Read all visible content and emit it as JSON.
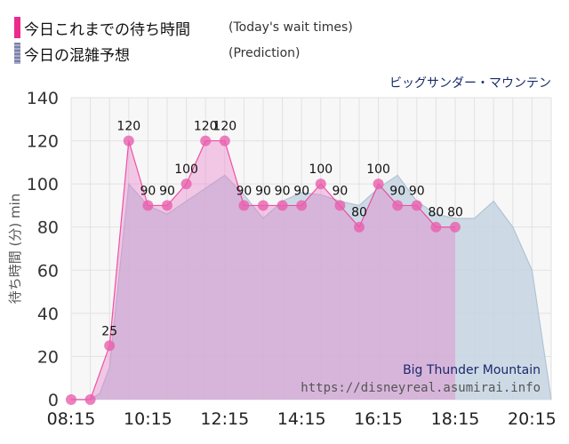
{
  "legend": {
    "actual": {
      "label": "今日これまでの待ち時間",
      "sub": "(Today's wait times)",
      "color": "#ec2a8e"
    },
    "prediction": {
      "label": "今日の混雑予想",
      "sub": "(Prediction)",
      "color": "#7b7fa8"
    }
  },
  "attraction_jp": "ビッグサンダー・マウンテン",
  "attraction_en": "Big Thunder Mountain",
  "source": "https://disneyreal.asumirai.info",
  "colors": {
    "actual_line": "#ec3a95",
    "actual_fill": "#f3b3dc",
    "actual_dot": "#ea5fae",
    "prediction_line": "#b3c3d3",
    "prediction_fill": "#c6d5e3",
    "overlap_fill": "#d8b8dc",
    "grid": "#e2e2e2",
    "plot_bg": "#f7f7f7",
    "title_color": "#1a2a6a"
  },
  "chart_data": {
    "type": "area",
    "ylabel": "待ち時間 (分) min",
    "ylim": [
      0,
      140
    ],
    "yticks": [
      0,
      20,
      40,
      60,
      80,
      100,
      120,
      140
    ],
    "xlim": [
      "08:15",
      "20:45"
    ],
    "xticks": [
      "08:15",
      "10:15",
      "12:15",
      "14:15",
      "16:15",
      "18:15",
      "20:15"
    ],
    "grid": true,
    "legend_position": "top-left",
    "series": [
      {
        "name": "今日これまでの待ち時間",
        "x": [
          "08:15",
          "08:45",
          "09:15",
          "09:45",
          "10:15",
          "10:45",
          "11:15",
          "11:45",
          "12:15",
          "12:45",
          "13:15",
          "13:45",
          "14:15",
          "14:45",
          "15:15",
          "15:45",
          "16:15",
          "16:45",
          "17:15",
          "17:45",
          "18:15"
        ],
        "values": [
          0,
          0,
          25,
          120,
          90,
          90,
          100,
          120,
          120,
          90,
          90,
          90,
          90,
          100,
          90,
          80,
          100,
          90,
          90,
          80,
          80
        ]
      },
      {
        "name": "今日の混雑予想",
        "x": [
          "08:15",
          "08:45",
          "09:00",
          "09:15",
          "09:45",
          "10:15",
          "10:45",
          "11:15",
          "11:45",
          "12:15",
          "12:45",
          "13:15",
          "13:45",
          "14:15",
          "14:45",
          "15:15",
          "15:45",
          "16:15",
          "16:45",
          "17:15",
          "17:45",
          "18:15",
          "18:45",
          "19:15",
          "19:45",
          "20:15",
          "20:45"
        ],
        "values": [
          0,
          0,
          3,
          15,
          100,
          90,
          86,
          92,
          98,
          104,
          95,
          84,
          92,
          96,
          95,
          92,
          90,
          98,
          104,
          92,
          86,
          84,
          84,
          92,
          80,
          60,
          0
        ]
      }
    ]
  }
}
